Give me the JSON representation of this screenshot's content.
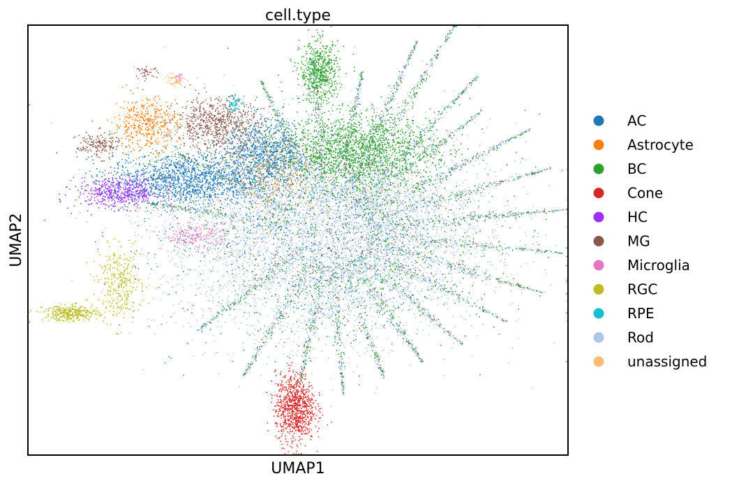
{
  "chart_data": {
    "type": "scatter",
    "title": "cell.type",
    "xlabel": "UMAP1",
    "ylabel": "UMAP2",
    "xlim": [
      0,
      100
    ],
    "ylim": [
      0,
      100
    ],
    "grid": false,
    "ticks": false,
    "legend_position": "right",
    "series": [
      {
        "name": "AC",
        "color": "#1f77b4",
        "clusters": [
          {
            "cx": 29,
            "cy": 64,
            "sx": 7,
            "sy": 3,
            "n": 1400
          },
          {
            "cx": 44,
            "cy": 70,
            "sx": 4,
            "sy": 4,
            "n": 900
          },
          {
            "cx": 53,
            "cy": 55,
            "sx": 12,
            "sy": 12,
            "n": 500
          }
        ]
      },
      {
        "name": "Astrocyte",
        "color": "#ff7f0e",
        "clusters": [
          {
            "cx": 22,
            "cy": 77,
            "sx": 3,
            "sy": 3,
            "n": 450
          },
          {
            "cx": 46,
            "cy": 65,
            "sx": 5,
            "sy": 4,
            "n": 220
          }
        ]
      },
      {
        "name": "BC",
        "color": "#2ca02c",
        "clusters": [
          {
            "cx": 54,
            "cy": 89,
            "sx": 1.8,
            "sy": 3.5,
            "n": 600
          },
          {
            "cx": 61,
            "cy": 71,
            "sx": 7,
            "sy": 4,
            "n": 1500
          },
          {
            "cx": 56,
            "cy": 52,
            "sx": 18,
            "sy": 14,
            "n": 700
          }
        ]
      },
      {
        "name": "Cone",
        "color": "#d62728",
        "clusters": [
          {
            "cx": 49.5,
            "cy": 11,
            "sx": 1.8,
            "sy": 4,
            "n": 900
          }
        ]
      },
      {
        "name": "HC",
        "color": "#9b30ff",
        "clusters": [
          {
            "cx": 17,
            "cy": 61,
            "sx": 4,
            "sy": 1.8,
            "n": 500
          }
        ]
      },
      {
        "name": "MG",
        "color": "#8c564b",
        "clusters": [
          {
            "cx": 13,
            "cy": 72,
            "sx": 2,
            "sy": 1.5,
            "n": 180
          },
          {
            "cx": 35,
            "cy": 77,
            "sx": 4,
            "sy": 3,
            "n": 700
          },
          {
            "cx": 22,
            "cy": 89,
            "sx": 1,
            "sy": 0.6,
            "n": 40
          },
          {
            "cx": 55,
            "cy": 55,
            "sx": 16,
            "sy": 14,
            "n": 300
          }
        ]
      },
      {
        "name": "Microglia",
        "color": "#e377c2",
        "clusters": [
          {
            "cx": 31,
            "cy": 51,
            "sx": 3,
            "sy": 1.5,
            "n": 200
          },
          {
            "cx": 28,
            "cy": 88,
            "sx": 0.5,
            "sy": 0.5,
            "n": 15
          }
        ]
      },
      {
        "name": "RGC",
        "color": "#bcbd22",
        "clusters": [
          {
            "cx": 8,
            "cy": 33,
            "sx": 2.5,
            "sy": 0.9,
            "n": 350
          },
          {
            "cx": 17,
            "cy": 40,
            "sx": 2,
            "sy": 4,
            "n": 300
          }
        ]
      },
      {
        "name": "RPE",
        "color": "#17becf",
        "clusters": [
          {
            "cx": 38,
            "cy": 82,
            "sx": 0.6,
            "sy": 1.2,
            "n": 60
          }
        ]
      },
      {
        "name": "Rod",
        "color": "#aec7e8",
        "clusters": [
          {
            "cx": 55,
            "cy": 52,
            "sx": 15,
            "sy": 12,
            "n": 6000
          }
        ]
      },
      {
        "name": "unassigned",
        "color": "#ffbb78",
        "clusters": [
          {
            "cx": 27,
            "cy": 87,
            "sx": 1,
            "sy": 0.8,
            "n": 50
          }
        ]
      }
    ],
    "streaks": [
      {
        "angle": 62,
        "length": 48,
        "n": 300
      },
      {
        "angle": 68,
        "length": 40,
        "n": 280
      },
      {
        "angle": 50,
        "length": 40,
        "n": 280
      },
      {
        "angle": 42,
        "length": 34,
        "n": 250
      },
      {
        "angle": 30,
        "length": 40,
        "n": 300
      },
      {
        "angle": 18,
        "length": 40,
        "n": 280
      },
      {
        "angle": 6,
        "length": 42,
        "n": 300
      },
      {
        "angle": -6,
        "length": 40,
        "n": 260
      },
      {
        "angle": -18,
        "length": 38,
        "n": 260
      },
      {
        "angle": -30,
        "length": 34,
        "n": 250
      },
      {
        "angle": -44,
        "length": 30,
        "n": 240
      },
      {
        "angle": -58,
        "length": 28,
        "n": 230
      },
      {
        "angle": -72,
        "length": 28,
        "n": 220
      },
      {
        "angle": -86,
        "length": 30,
        "n": 220
      },
      {
        "angle": -100,
        "length": 28,
        "n": 220
      },
      {
        "angle": -118,
        "length": 30,
        "n": 230
      },
      {
        "angle": -140,
        "length": 28,
        "n": 220
      },
      {
        "angle": 80,
        "length": 30,
        "n": 200
      },
      {
        "angle": 95,
        "length": 32,
        "n": 220
      },
      {
        "angle": 112,
        "length": 30,
        "n": 220
      },
      {
        "angle": 150,
        "length": 28,
        "n": 200
      },
      {
        "angle": 170,
        "length": 30,
        "n": 200
      }
    ]
  }
}
